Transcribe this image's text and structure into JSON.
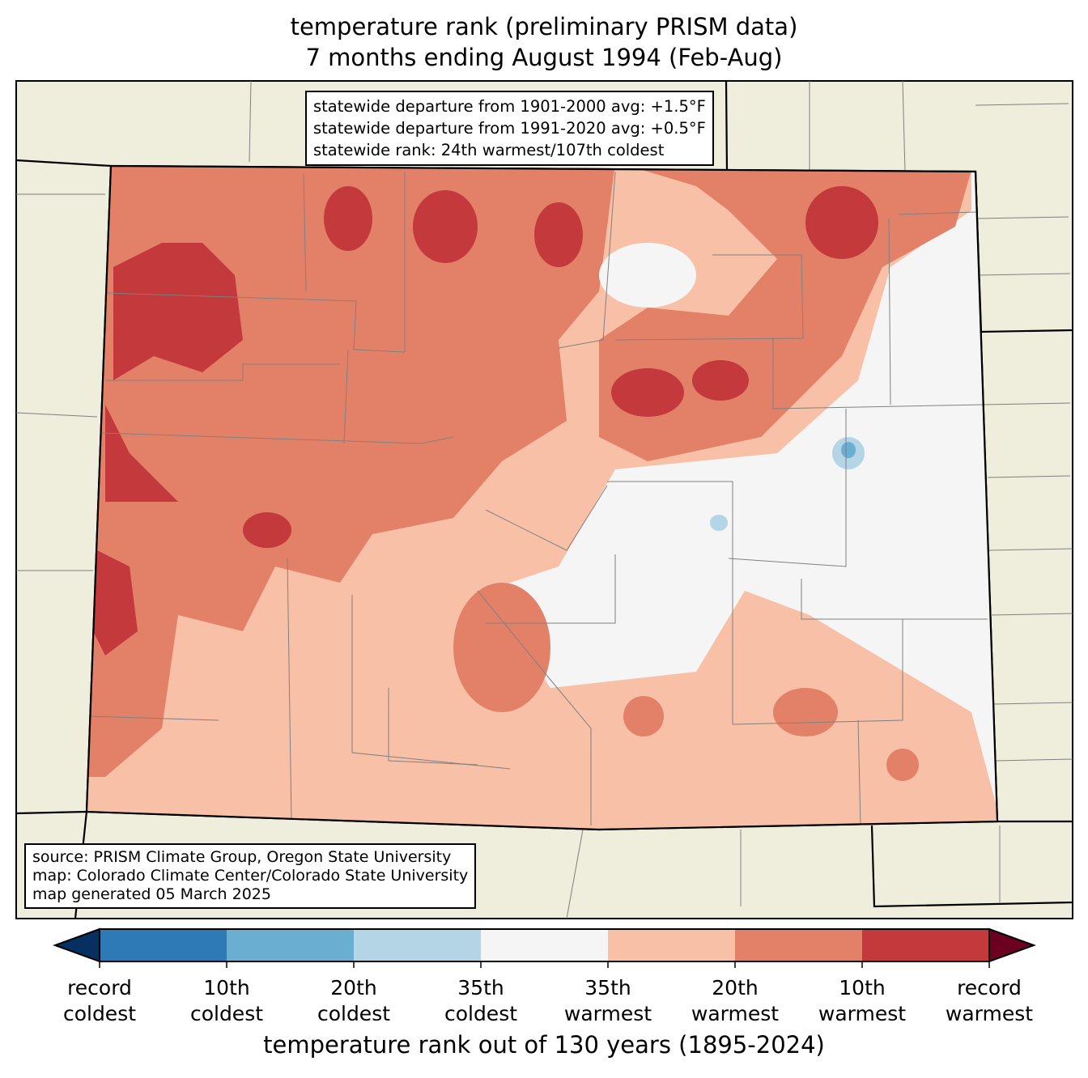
{
  "title": {
    "line1": "temperature rank (preliminary PRISM data)",
    "line2": "7 months ending August 1994 (Feb-Aug)"
  },
  "stats_box": {
    "line1": "statewide departure from 1901-2000 avg: +1.5°F",
    "line2": "statewide departure from 1991-2020 avg: +0.5°F",
    "line3": "statewide rank: 24th warmest/107th coldest"
  },
  "source_box": {
    "line1": "source: PRISM Climate Group, Oregon State University",
    "line2": "map: Colorado Climate Center/Colorado State University",
    "line3": "map generated 05 March 2025"
  },
  "colorbar": {
    "label": "temperature rank out of 130 years (1895-2024)",
    "colors": {
      "under": "#053061",
      "bins": [
        "#2e7ab6",
        "#6aaed2",
        "#b3d5e6",
        "#f5f5f5",
        "#f8c0a6",
        "#e38068",
        "#c3393c"
      ],
      "over": "#6b0020"
    },
    "ticks": [
      {
        "l1": "record",
        "l2": "coldest"
      },
      {
        "l1": "10th",
        "l2": "coldest"
      },
      {
        "l1": "20th",
        "l2": "coldest"
      },
      {
        "l1": "35th",
        "l2": "coldest"
      },
      {
        "l1": "35th",
        "l2": "warmest"
      },
      {
        "l1": "20th",
        "l2": "warmest"
      },
      {
        "l1": "10th",
        "l2": "warmest"
      },
      {
        "l1": "record",
        "l2": "warmest"
      }
    ]
  },
  "map_colors": {
    "land": "#efeddb",
    "state_border": "#000000",
    "county_border": "#808080"
  }
}
